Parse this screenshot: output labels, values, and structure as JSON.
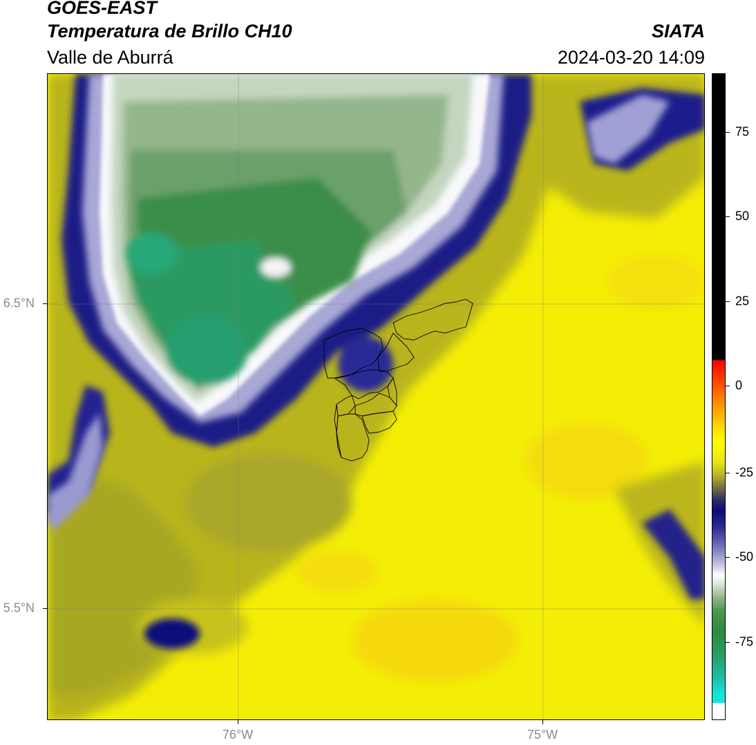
{
  "header": {
    "title_main": "GOES-EAST",
    "title_sub": "Temperatura de Brillo CH10",
    "region": "Valle de Aburrá",
    "agency": "SIATA",
    "timestamp": "2024-03-20 14:09"
  },
  "map": {
    "lat_ticks": [
      {
        "label": "6.5°N",
        "value": 6.5
      },
      {
        "label": "5.5°N",
        "value": 5.5
      }
    ],
    "lon_ticks": [
      {
        "label": "76°W",
        "value": -76
      },
      {
        "label": "75°W",
        "value": -75
      }
    ],
    "extent": {
      "lon_min": -76.625,
      "lon_max": -74.47,
      "lat_min": 5.13,
      "lat_max": 7.25
    },
    "grid": true
  },
  "colorbar": {
    "range": [
      -95,
      90
    ],
    "ticks": [
      "75",
      "50",
      "25",
      "0",
      "-25",
      "-50",
      "-75"
    ],
    "tick_values": [
      75,
      50,
      25,
      0,
      -25,
      -50,
      -75
    ],
    "colors": {
      "cold_cyan": "#1de0c8",
      "green": "#2e8a3a",
      "white": "#ffffff",
      "lavender": "#a8a8d8",
      "navy": "#0b0b7a",
      "olive": "#b0b020",
      "yellow": "#ffff00",
      "orange": "#ff8c00",
      "red": "#ff2000",
      "black": "#000000"
    }
  }
}
